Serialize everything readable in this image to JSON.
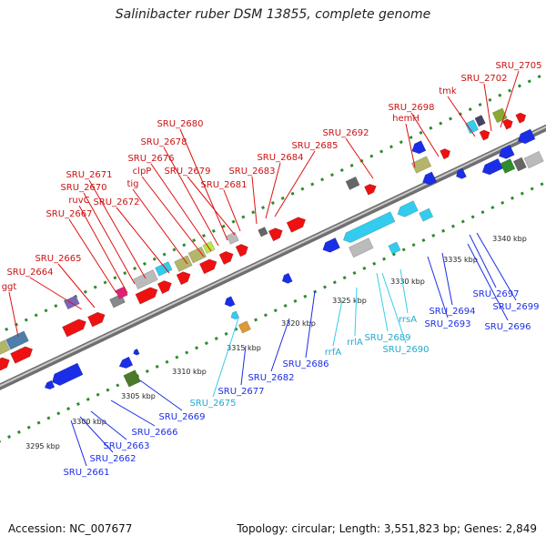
{
  "title": "Salinibacter ruber DSM 13855, complete genome",
  "footer": {
    "accession": "Accession: NC_007677",
    "info": "Topology: circular; Length: 3,551,823 bp; Genes: 2,849"
  },
  "colors": {
    "forward_cds": "#ee1111",
    "reverse_cds": "#1a2ee8",
    "rna": "#33ccee",
    "backbone": "#9a9a9a",
    "ticks": "#2e8b2e"
  },
  "scale_labels": [
    "3295 kbp",
    "3300 kbp",
    "3305 kbp",
    "3310 kbp",
    "3315 kbp",
    "3320 kbp",
    "3325 kbp",
    "3330 kbp",
    "3335 kbp",
    "3340 kbp"
  ],
  "top_labels": [
    "ggt",
    "SRU_2664",
    "SRU_2665",
    "SRU_2667",
    "ruvC",
    "SRU_2670",
    "SRU_2671",
    "SRU_2672",
    "tig",
    "clpP",
    "SRU_2676",
    "SRU_2678",
    "SRU_2679",
    "SRU_2680",
    "SRU_2681",
    "SRU_2683",
    "SRU_2684",
    "SRU_2685",
    "SRU_2692",
    "hemH",
    "SRU_2698",
    "tmk",
    "SRU_2702",
    "SRU_2705"
  ],
  "bottom_labels": [
    "SRU_2661",
    "SRU_2662",
    "SRU_2663",
    "SRU_2666",
    "SRU_2669",
    "SRU_2675",
    "SRU_2677",
    "SRU_2682",
    "SRU_2686",
    "rrfA",
    "rrlA",
    "SRU_2689",
    "SRU_2690",
    "rrsA",
    "SRU_2693",
    "SRU_2694",
    "SRU_2696",
    "SRU_2697",
    "SRU_2699"
  ]
}
